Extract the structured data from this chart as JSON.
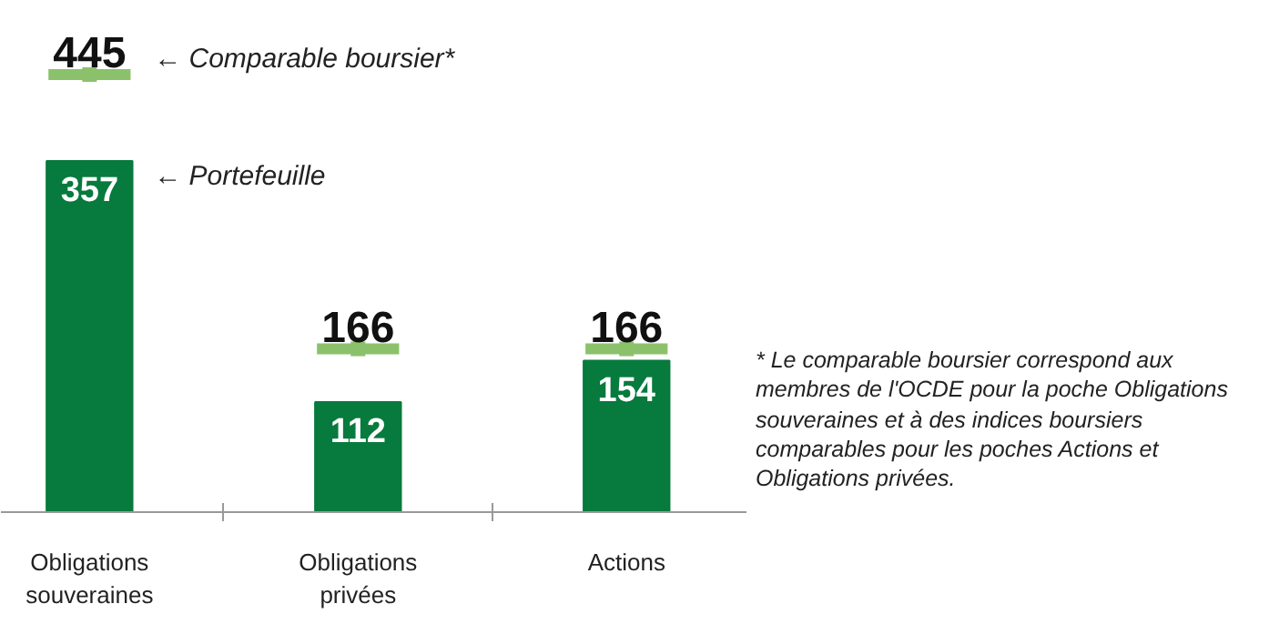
{
  "chart_data": {
    "type": "bar",
    "categories": [
      "Obligations souveraines",
      "Obligations privées",
      "Actions"
    ],
    "series": [
      {
        "name": "← Portefeuille",
        "color": "#077a3d",
        "values": [
          357,
          112,
          154
        ]
      },
      {
        "name": "← Comparable boursier*",
        "type": "scatter",
        "color": "#8cc16c",
        "values": [
          445,
          166,
          166
        ]
      }
    ],
    "data_labels": true,
    "annotations": [
      "* Le comparable boursier correspond aux membres de l'OCDE pour la poche Obligations souveraines et à des indices boursiers comparables pour les poches Actions et Obligations privées."
    ]
  }
}
